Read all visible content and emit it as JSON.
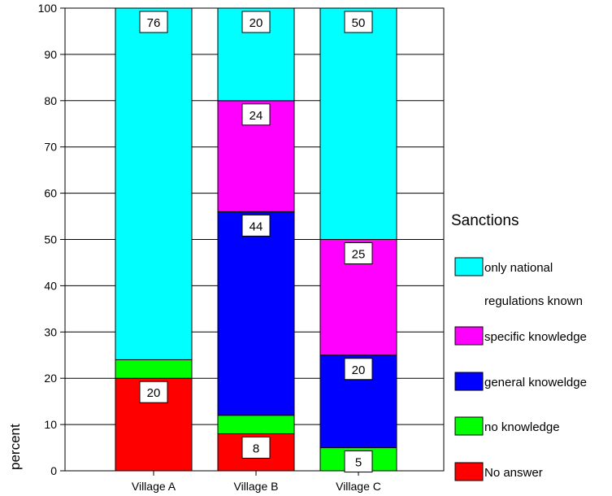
{
  "chart_data": {
    "type": "bar",
    "stacked": true,
    "categories": [
      "Village A",
      "Village B",
      "Village C"
    ],
    "ylabel": "percent",
    "ylim": [
      0,
      100
    ],
    "yticks": [
      0,
      10,
      20,
      30,
      40,
      50,
      60,
      70,
      80,
      90,
      100
    ],
    "grid": true,
    "legend_title": "Sanctions",
    "legend_placement": "right",
    "series": [
      {
        "name": "No answer",
        "color": "#ff0000",
        "values": [
          20,
          8,
          0
        ],
        "labels": [
          "20",
          "8",
          ""
        ]
      },
      {
        "name": "no knowledge",
        "color": "#00ff00",
        "values": [
          4,
          4,
          5
        ],
        "labels": [
          "",
          "",
          "5"
        ]
      },
      {
        "name": "general knoweldge",
        "color": "#0000ff",
        "values": [
          0,
          44,
          20
        ],
        "labels": [
          "",
          "44",
          "20"
        ]
      },
      {
        "name": "specific knowledge",
        "color": "#ff00ff",
        "values": [
          0,
          24,
          25
        ],
        "labels": [
          "",
          "24",
          "25"
        ]
      },
      {
        "name": "only national regulations known",
        "color": "#00ffff",
        "values": [
          76,
          20,
          50
        ],
        "labels": [
          "76",
          "20",
          "50"
        ]
      }
    ],
    "legend_order": [
      {
        "lines": [
          "only national",
          "regulations known"
        ],
        "color": "#00ffff"
      },
      {
        "lines": [
          "specific knowledge"
        ],
        "color": "#ff00ff"
      },
      {
        "lines": [
          "general knoweldge"
        ],
        "color": "#0000ff"
      },
      {
        "lines": [
          "no knowledge"
        ],
        "color": "#00ff00"
      },
      {
        "lines": [
          "No answer"
        ],
        "color": "#ff0000"
      }
    ]
  }
}
